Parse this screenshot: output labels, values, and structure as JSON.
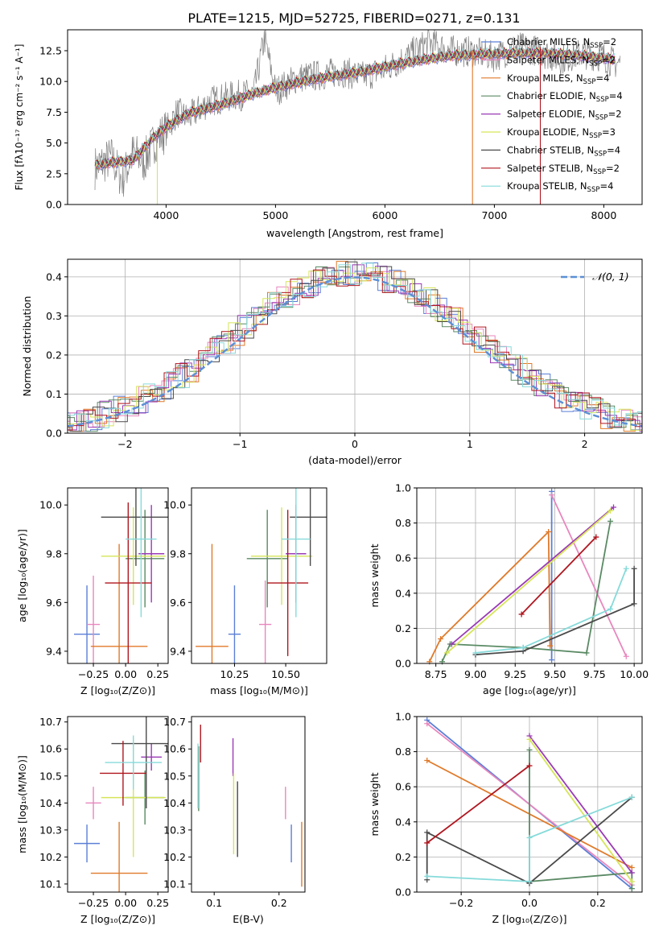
{
  "figure": {
    "title": "PLATE=1215, MJD=52725, FIBERID=0271, z=0.131"
  },
  "colors": {
    "Chabrier MILES": "#5b7fd6",
    "Salpeter MILES": "#e887be",
    "Kroupa MILES": "#e07a2a",
    "Chabrier ELODIE": "#5a8a64",
    "Salpeter ELODIE": "#9a3ab5",
    "Kroupa ELODIE": "#d6e55a",
    "Chabrier STELIB": "#4a4a4a",
    "Salpeter STELIB": "#b0161f",
    "Kroupa STELIB": "#86dada",
    "data": "#808080",
    "normal": "#5b8fd6"
  },
  "chart_data": [
    {
      "id": "spectrum",
      "type": "line",
      "xlabel": "wavelength [Angstrom, rest frame]",
      "ylabel": "Flux [fλ10⁻¹⁷ erg cm⁻² s⁻¹ A⁻¹]",
      "xlim": [
        3100,
        8350
      ],
      "ylim": [
        0,
        14.2
      ],
      "xticks": [
        "4000",
        "5000",
        "6000",
        "7000",
        "8000"
      ],
      "yticks": [
        "0.0",
        "2.5",
        "5.0",
        "7.5",
        "10.0",
        "12.5"
      ],
      "legend_position": "top-right",
      "model_x": [
        3350,
        3500,
        3700,
        3900,
        4000,
        4200,
        4500,
        4800,
        5000,
        5300,
        5500,
        5800,
        6000,
        6300,
        6600,
        6900,
        7200,
        7500,
        7800,
        8100
      ],
      "model_y": [
        3.2,
        3.4,
        3.6,
        5.6,
        6.3,
        7.4,
        8.1,
        9.0,
        9.5,
        10.1,
        10.4,
        10.8,
        11.2,
        11.7,
        12.1,
        12.2,
        12.3,
        12.3,
        12.1,
        11.8
      ],
      "data_x": [
        3350,
        3500,
        3600,
        3700,
        3800,
        3900,
        4000,
        4100,
        4200,
        4400,
        4600,
        4800,
        4900,
        5000,
        5200,
        5400,
        5600,
        5800,
        6000,
        6200,
        6400,
        6600,
        6800,
        7000,
        7200,
        7400,
        7600,
        7800,
        8000,
        8100
      ],
      "data_y": [
        3.0,
        3.8,
        2.0,
        4.2,
        3.5,
        5.2,
        6.0,
        7.5,
        7.0,
        8.4,
        8.8,
        9.0,
        13.5,
        9.2,
        10.3,
        10.5,
        10.8,
        10.4,
        11.0,
        12.0,
        13.2,
        12.5,
        12.4,
        12.0,
        12.8,
        12.5,
        11.8,
        12.3,
        12.0,
        11.5
      ],
      "series": [
        {
          "name": "Chabrier MILES, N",
          "sub": "SSP",
          "suffix": "=2"
        },
        {
          "name": "Salpeter MILES, N",
          "sub": "SSP",
          "suffix": "=2"
        },
        {
          "name": "Kroupa MILES, N",
          "sub": "SSP",
          "suffix": "=4"
        },
        {
          "name": "Chabrier ELODIE, N",
          "sub": "SSP",
          "suffix": "=4"
        },
        {
          "name": "Salpeter ELODIE, N",
          "sub": "SSP",
          "suffix": "=2"
        },
        {
          "name": "Kroupa ELODIE, N",
          "sub": "SSP",
          "suffix": "=3"
        },
        {
          "name": "Chabrier STELIB, N",
          "sub": "SSP",
          "suffix": "=4"
        },
        {
          "name": "Salpeter STELIB, N",
          "sub": "SSP",
          "suffix": "=2"
        },
        {
          "name": "Kroupa STELIB, N",
          "sub": "SSP",
          "suffix": "=4"
        }
      ]
    },
    {
      "id": "residuals",
      "type": "line",
      "xlabel": "(data-model)/error",
      "ylabel": "Normed distribution",
      "xlim": [
        -2.5,
        2.5
      ],
      "ylim": [
        0,
        0.445
      ],
      "xticks": [
        -2,
        -1,
        0,
        1,
        2
      ],
      "xticklabels": [
        "−2",
        "−1",
        "0",
        "1",
        "2"
      ],
      "yticks": [
        0.0,
        0.1,
        0.2,
        0.3,
        0.4
      ],
      "yticklabels": [
        "0.0",
        "0.1",
        "0.2",
        "0.3",
        "0.4"
      ],
      "grid": true,
      "legend": "𝒩(0, 1)",
      "legend_position": "top-right"
    },
    {
      "id": "age-vs-Z",
      "type": "scatter",
      "xlabel": "Z [log₁₀(Z/Z⊙)]",
      "ylabel": "age  [log₁₀(age/yr)]",
      "xlim": [
        -0.45,
        0.33
      ],
      "ylim": [
        9.35,
        10.07
      ],
      "xticks": [
        -0.25,
        0.0,
        0.25
      ],
      "xticklabels": [
        "−0.25",
        "0.00",
        "0.25"
      ],
      "yticks": [
        9.4,
        9.6,
        9.8,
        10.0
      ],
      "yticklabels": [
        "9.4",
        "9.6",
        "9.8",
        "10.0"
      ],
      "points": [
        {
          "model": "Chabrier MILES",
          "x": -0.3,
          "y": 9.47,
          "xerr": 0.1,
          "yerr": 0.2
        },
        {
          "model": "Salpeter MILES",
          "x": -0.25,
          "y": 9.51,
          "xerr": 0.05,
          "yerr": 0.2
        },
        {
          "model": "Kroupa MILES",
          "x": -0.05,
          "y": 9.42,
          "xerr": 0.22,
          "yerr": 0.42
        },
        {
          "model": "Chabrier ELODIE",
          "x": 0.15,
          "y": 9.78,
          "xerr": 0.15,
          "yerr": 0.2
        },
        {
          "model": "Salpeter ELODIE",
          "x": 0.2,
          "y": 9.8,
          "xerr": 0.1,
          "yerr": 0.2
        },
        {
          "model": "Kroupa ELODIE",
          "x": 0.06,
          "y": 9.79,
          "xerr": 0.25,
          "yerr": 0.2
        },
        {
          "model": "Chabrier STELIB",
          "x": 0.08,
          "y": 9.95,
          "xerr": 0.27,
          "yerr": 0.2
        },
        {
          "model": "Salpeter STELIB",
          "x": 0.02,
          "y": 9.68,
          "xerr": 0.18,
          "yerr": 0.33
        },
        {
          "model": "Kroupa STELIB",
          "x": 0.12,
          "y": 9.86,
          "xerr": 0.12,
          "yerr": 0.32
        }
      ]
    },
    {
      "id": "age-vs-mass",
      "type": "scatter",
      "xlabel": "mass [log₁₀(M/M⊙)]",
      "ylabel": "",
      "xlim": [
        10.04,
        10.7
      ],
      "ylim": [
        9.35,
        10.07
      ],
      "xticks": [
        10.25,
        10.5
      ],
      "xticklabels": [
        "10.25",
        "10.50"
      ],
      "yticks": [
        9.4,
        9.6,
        9.8,
        10.0
      ],
      "yticklabels": [
        "9.4",
        "9.6",
        "9.8",
        "10.0"
      ],
      "points": [
        {
          "model": "Chabrier MILES",
          "x": 10.25,
          "y": 9.47,
          "xerr": 0.03,
          "yerr": 0.2
        },
        {
          "model": "Salpeter MILES",
          "x": 10.4,
          "y": 9.51,
          "xerr": 0.03,
          "yerr": 0.18
        },
        {
          "model": "Kroupa MILES",
          "x": 10.14,
          "y": 9.42,
          "xerr": 0.08,
          "yerr": 0.42
        },
        {
          "model": "Chabrier ELODIE",
          "x": 10.41,
          "y": 9.78,
          "xerr": 0.1,
          "yerr": 0.2
        },
        {
          "model": "Salpeter ELODIE",
          "x": 10.55,
          "y": 9.8,
          "xerr": 0.05,
          "yerr": 0.2
        },
        {
          "model": "Kroupa ELODIE",
          "x": 10.48,
          "y": 9.79,
          "xerr": 0.15,
          "yerr": 0.2
        },
        {
          "model": "Chabrier STELIB",
          "x": 10.62,
          "y": 9.95,
          "xerr": 0.1,
          "yerr": 0.2
        },
        {
          "model": "Salpeter STELIB",
          "x": 10.51,
          "y": 9.68,
          "xerr": 0.1,
          "yerr": 0.3
        },
        {
          "model": "Kroupa STELIB",
          "x": 10.55,
          "y": 9.86,
          "xerr": 0.07,
          "yerr": 0.32
        }
      ]
    },
    {
      "id": "weight-vs-age",
      "type": "line",
      "xlabel": "age  [log₁₀(age/yr)]",
      "ylabel": "mass weight",
      "xlim": [
        8.63,
        10.05
      ],
      "ylim": [
        0,
        1
      ],
      "xticks": [
        8.75,
        9.0,
        9.25,
        9.5,
        9.75,
        10.0
      ],
      "xticklabels": [
        "8.75",
        "9.00",
        "9.25",
        "9.50",
        "9.75",
        "10.00"
      ],
      "yticks": [
        0.0,
        0.2,
        0.4,
        0.6,
        0.8,
        1.0
      ],
      "yticklabels": [
        "0.0",
        "0.2",
        "0.4",
        "0.6",
        "0.8",
        "1.0"
      ],
      "grid": true,
      "series": [
        {
          "model": "Chabrier MILES",
          "x": [
            9.48,
            9.48
          ],
          "y": [
            0.98,
            0.02
          ]
        },
        {
          "model": "Salpeter MILES",
          "x": [
            9.48,
            9.95
          ],
          "y": [
            0.96,
            0.04
          ]
        },
        {
          "model": "Kroupa MILES",
          "x": [
            8.71,
            8.78,
            9.46,
            9.47
          ],
          "y": [
            0.01,
            0.14,
            0.75,
            0.1
          ]
        },
        {
          "model": "Chabrier ELODIE",
          "x": [
            8.79,
            8.84,
            9.3,
            9.7,
            9.85
          ],
          "y": [
            0.01,
            0.11,
            0.09,
            0.06,
            0.81
          ]
        },
        {
          "model": "Salpeter ELODIE",
          "x": [
            8.85,
            9.87
          ],
          "y": [
            0.11,
            0.89
          ]
        },
        {
          "model": "Kroupa ELODIE",
          "x": [
            8.82,
            9.85
          ],
          "y": [
            0.06,
            0.87
          ]
        },
        {
          "model": "Chabrier STELIB",
          "x": [
            9.0,
            9.3,
            10.0,
            10.0
          ],
          "y": [
            0.05,
            0.07,
            0.34,
            0.54
          ]
        },
        {
          "model": "Salpeter STELIB",
          "x": [
            9.29,
            9.76
          ],
          "y": [
            0.28,
            0.72
          ]
        },
        {
          "model": "Kroupa STELIB",
          "x": [
            9.0,
            9.3,
            9.85,
            9.95
          ],
          "y": [
            0.06,
            0.09,
            0.31,
            0.54
          ]
        }
      ]
    },
    {
      "id": "mass-vs-Z",
      "type": "scatter",
      "xlabel": "Z [log₁₀(Z/Z⊙)]",
      "ylabel": "mass [log₁₀(M/M⊙)]",
      "xlim": [
        -0.45,
        0.33
      ],
      "ylim": [
        10.07,
        10.72
      ],
      "xticks": [
        -0.25,
        0.0,
        0.25
      ],
      "xticklabels": [
        "−0.25",
        "0.00",
        "0.25"
      ],
      "yticks": [
        10.1,
        10.2,
        10.3,
        10.4,
        10.5,
        10.6,
        10.7
      ],
      "yticklabels": [
        "10.1",
        "10.2",
        "10.3",
        "10.4",
        "10.5",
        "10.6",
        "10.7"
      ],
      "points": [
        {
          "model": "Chabrier MILES",
          "x": -0.3,
          "y": 10.25,
          "xerr": 0.1,
          "yerr": 0.07
        },
        {
          "model": "Salpeter MILES",
          "x": -0.25,
          "y": 10.4,
          "xerr": 0.06,
          "yerr": 0.06
        },
        {
          "model": "Kroupa MILES",
          "x": -0.05,
          "y": 10.14,
          "xerr": 0.22,
          "yerr": 0.19
        },
        {
          "model": "Chabrier ELODIE",
          "x": 0.15,
          "y": 10.42,
          "xerr": 0.15,
          "yerr": 0.1
        },
        {
          "model": "Salpeter ELODIE",
          "x": 0.2,
          "y": 10.57,
          "xerr": 0.08,
          "yerr": 0.05
        },
        {
          "model": "Kroupa ELODIE",
          "x": 0.06,
          "y": 10.42,
          "xerr": 0.25,
          "yerr": 0.22
        },
        {
          "model": "Chabrier STELIB",
          "x": 0.16,
          "y": 10.62,
          "xerr": 0.27,
          "yerr": 0.24
        },
        {
          "model": "Salpeter STELIB",
          "x": -0.02,
          "y": 10.51,
          "xerr": 0.18,
          "yerr": 0.12
        },
        {
          "model": "Kroupa STELIB",
          "x": 0.06,
          "y": 10.55,
          "xerr": 0.22,
          "yerr": 0.1
        }
      ]
    },
    {
      "id": "mass-vs-EBV",
      "type": "scatter",
      "xlabel": "E(B-V)",
      "ylabel": "",
      "xlim": [
        0.065,
        0.24
      ],
      "ylim": [
        10.07,
        10.72
      ],
      "xticks": [
        0.1,
        0.2
      ],
      "xticklabels": [
        "0.1",
        "0.2"
      ],
      "yticks": [
        10.1,
        10.2,
        10.3,
        10.4,
        10.5,
        10.6,
        10.7
      ],
      "yticklabels": [
        "10.1",
        "10.2",
        "10.3",
        "10.4",
        "10.5",
        "10.6",
        "10.7"
      ],
      "points": [
        {
          "model": "Chabrier MILES",
          "x": 0.219,
          "y": 10.25,
          "xerr": 0,
          "yerr": 0.07
        },
        {
          "model": "Salpeter MILES",
          "x": 0.21,
          "y": 10.4,
          "xerr": 0,
          "yerr": 0.06
        },
        {
          "model": "Kroupa MILES",
          "x": 0.235,
          "y": 10.21,
          "xerr": 0,
          "yerr": 0.12
        },
        {
          "model": "Chabrier ELODIE",
          "x": 0.076,
          "y": 10.49,
          "xerr": 0,
          "yerr": 0.12
        },
        {
          "model": "Salpeter ELODIE",
          "x": 0.129,
          "y": 10.57,
          "xerr": 0,
          "yerr": 0.07
        },
        {
          "model": "Kroupa ELODIE",
          "x": 0.13,
          "y": 10.36,
          "xerr": 0,
          "yerr": 0.15
        },
        {
          "model": "Chabrier STELIB",
          "x": 0.136,
          "y": 10.34,
          "xerr": 0,
          "yerr": 0.14
        },
        {
          "model": "Salpeter STELIB",
          "x": 0.079,
          "y": 10.62,
          "xerr": 0,
          "yerr": 0.07
        },
        {
          "model": "Kroupa STELIB",
          "x": 0.075,
          "y": 10.5,
          "xerr": 0,
          "yerr": 0.12
        }
      ]
    },
    {
      "id": "weight-vs-Z",
      "type": "line",
      "xlabel": "Z [log₁₀(Z/Z⊙)]",
      "ylabel": "mass weight",
      "xlim": [
        -0.33,
        0.33
      ],
      "ylim": [
        0,
        1
      ],
      "xticks": [
        -0.2,
        0.0,
        0.2
      ],
      "xticklabels": [
        "−0.2",
        "0.0",
        "0.2"
      ],
      "yticks": [
        0.0,
        0.2,
        0.4,
        0.6,
        0.8,
        1.0
      ],
      "yticklabels": [
        "0.0",
        "0.2",
        "0.4",
        "0.6",
        "0.8",
        "1.0"
      ],
      "grid": true,
      "series": [
        {
          "model": "Chabrier MILES",
          "x": [
            -0.3,
            0.3
          ],
          "y": [
            0.98,
            0.02
          ]
        },
        {
          "model": "Salpeter MILES",
          "x": [
            -0.3,
            0.3
          ],
          "y": [
            0.96,
            0.04
          ]
        },
        {
          "model": "Kroupa MILES",
          "x": [
            -0.3,
            0.3
          ],
          "y": [
            0.75,
            0.14
          ]
        },
        {
          "model": "Chabrier ELODIE",
          "x": [
            0.0,
            0.0,
            0.3,
            0.3
          ],
          "y": [
            0.81,
            0.06,
            0.11,
            0.02
          ]
        },
        {
          "model": "Salpeter ELODIE",
          "x": [
            0.0,
            0.3
          ],
          "y": [
            0.89,
            0.11
          ]
        },
        {
          "model": "Kroupa ELODIE",
          "x": [
            0.0,
            0.3
          ],
          "y": [
            0.87,
            0.06
          ]
        },
        {
          "model": "Chabrier STELIB",
          "x": [
            -0.3,
            -0.3,
            0.0,
            0.3
          ],
          "y": [
            0.07,
            0.34,
            0.05,
            0.54
          ]
        },
        {
          "model": "Salpeter STELIB",
          "x": [
            -0.3,
            0.0
          ],
          "y": [
            0.28,
            0.72
          ]
        },
        {
          "model": "Kroupa STELIB",
          "x": [
            -0.3,
            0.0,
            0.0,
            0.3
          ],
          "y": [
            0.09,
            0.06,
            0.31,
            0.54
          ]
        }
      ]
    }
  ]
}
